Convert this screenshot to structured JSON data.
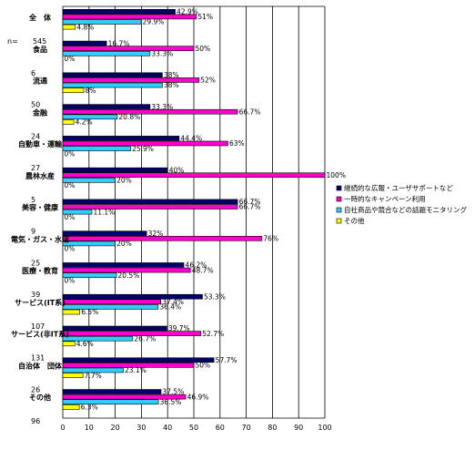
{
  "chart_data": {
    "type": "bar",
    "orientation": "horizontal",
    "xlim": [
      0,
      100
    ],
    "xticks": [
      "0",
      "10",
      "20",
      "30",
      "40",
      "50",
      "60",
      "70",
      "80",
      "90",
      "100"
    ],
    "grid": true,
    "legend_position": "right",
    "categories": [
      {
        "name": "全　体",
        "n_prefix": "n=",
        "n": "545"
      },
      {
        "name": "食品",
        "n": "6"
      },
      {
        "name": "流通",
        "n": "50"
      },
      {
        "name": "金融",
        "n": "24"
      },
      {
        "name": "自動車・運輸",
        "n": "27"
      },
      {
        "name": "農林水産",
        "n": "5"
      },
      {
        "name": "美容・健康",
        "n": "9"
      },
      {
        "name": "電気・ガス・水道",
        "n": "25"
      },
      {
        "name": "医療・教育",
        "n": "39"
      },
      {
        "name": "サービス(IT系)",
        "n": "107"
      },
      {
        "name": "サービス(非IT系)",
        "n": "131"
      },
      {
        "name": "自治体　団体",
        "n": "26"
      },
      {
        "name": "その他",
        "n": "96"
      }
    ],
    "series": [
      {
        "name": "継続的な広報・ユーザサポートなど",
        "color": "#000066",
        "values": [
          42.9,
          16.7,
          38,
          33.3,
          44.4,
          40,
          66.7,
          32,
          46.2,
          53.3,
          39.7,
          57.7,
          37.5
        ],
        "labels": [
          "42.9%",
          "16.7%",
          "38%",
          "33.3%",
          "44.4%",
          "40%",
          "66.7%",
          "32%",
          "46.2%",
          "53.3%",
          "39.7%",
          "57.7%",
          "37.5%"
        ]
      },
      {
        "name": "一時的なキャンペーン利用",
        "color": "#ff00cc",
        "values": [
          51,
          50,
          52,
          66.7,
          63,
          100,
          66.7,
          76,
          48.7,
          37.4,
          52.7,
          50,
          46.9
        ],
        "labels": [
          "51%",
          "50%",
          "52%",
          "66.7%",
          "63%",
          "100%",
          "66.7%",
          "76%",
          "48.7%",
          "37.4%",
          "52.7%",
          "50%",
          "46.9%"
        ]
      },
      {
        "name": "自社商品や競合などの話題モニタリング",
        "color": "#33ccff",
        "values": [
          29.9,
          33.3,
          38,
          20.8,
          25.9,
          20,
          11.1,
          20,
          20.5,
          36.4,
          26.7,
          23.1,
          36.5
        ],
        "labels": [
          "29.9%",
          "33.3%",
          "38%",
          "20.8%",
          "25.9%",
          "20%",
          "11.1%",
          "20%",
          "20.5%",
          "36.4%",
          "26.7%",
          "23.1%",
          "36.5%"
        ]
      },
      {
        "name": "その他",
        "color": "#ffff00",
        "values": [
          4.8,
          0,
          8,
          4.2,
          0,
          0,
          0,
          0,
          0,
          6.5,
          4.6,
          7.7,
          6.3
        ],
        "labels": [
          "4.8%",
          "0%",
          "8%",
          "4.2%",
          "0%",
          "0%",
          "0%",
          "0%",
          "0%",
          "6.5%",
          "4.6%",
          "7.7%",
          "6.3%"
        ]
      }
    ]
  }
}
